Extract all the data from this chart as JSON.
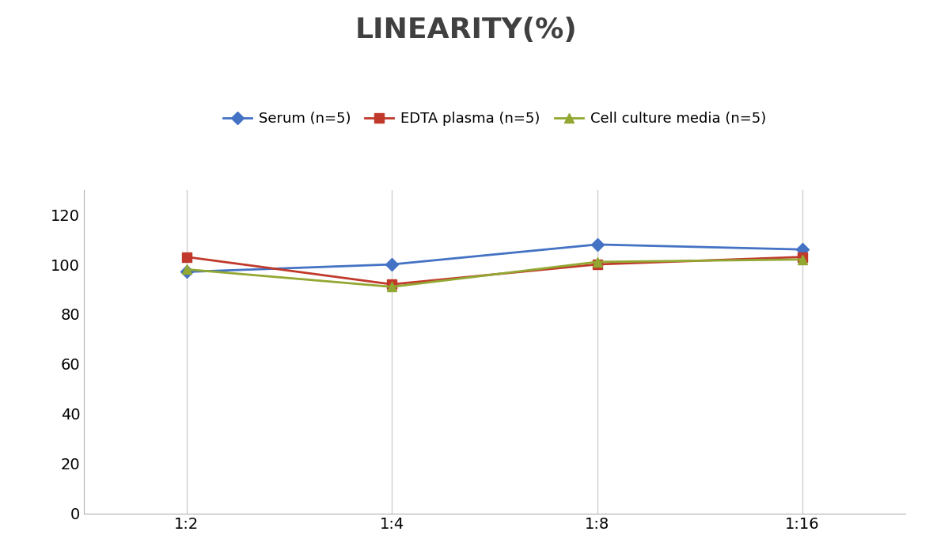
{
  "title": "LINEARITY(%)",
  "x_labels": [
    "1:2",
    "1:4",
    "1:8",
    "1:16"
  ],
  "x_values": [
    0,
    1,
    2,
    3
  ],
  "series": [
    {
      "label": "Serum (n=5)",
      "values": [
        97,
        100,
        108,
        106
      ],
      "color": "#4472C4",
      "marker": "D",
      "markersize": 8
    },
    {
      "label": "EDTA plasma (n=5)",
      "values": [
        103,
        92,
        100,
        103
      ],
      "color": "#C0392B",
      "marker": "s",
      "markersize": 8
    },
    {
      "label": "Cell culture media (n=5)",
      "values": [
        98,
        91,
        101,
        102
      ],
      "color": "#92A832",
      "marker": "^",
      "markersize": 8
    }
  ],
  "ylim": [
    0,
    130
  ],
  "yticks": [
    0,
    20,
    40,
    60,
    80,
    100,
    120
  ],
  "title_fontsize": 26,
  "title_color": "#404040",
  "legend_fontsize": 13,
  "tick_fontsize": 14,
  "background_color": "#ffffff",
  "grid_color": "#d0d0d0",
  "linewidth": 2.0
}
